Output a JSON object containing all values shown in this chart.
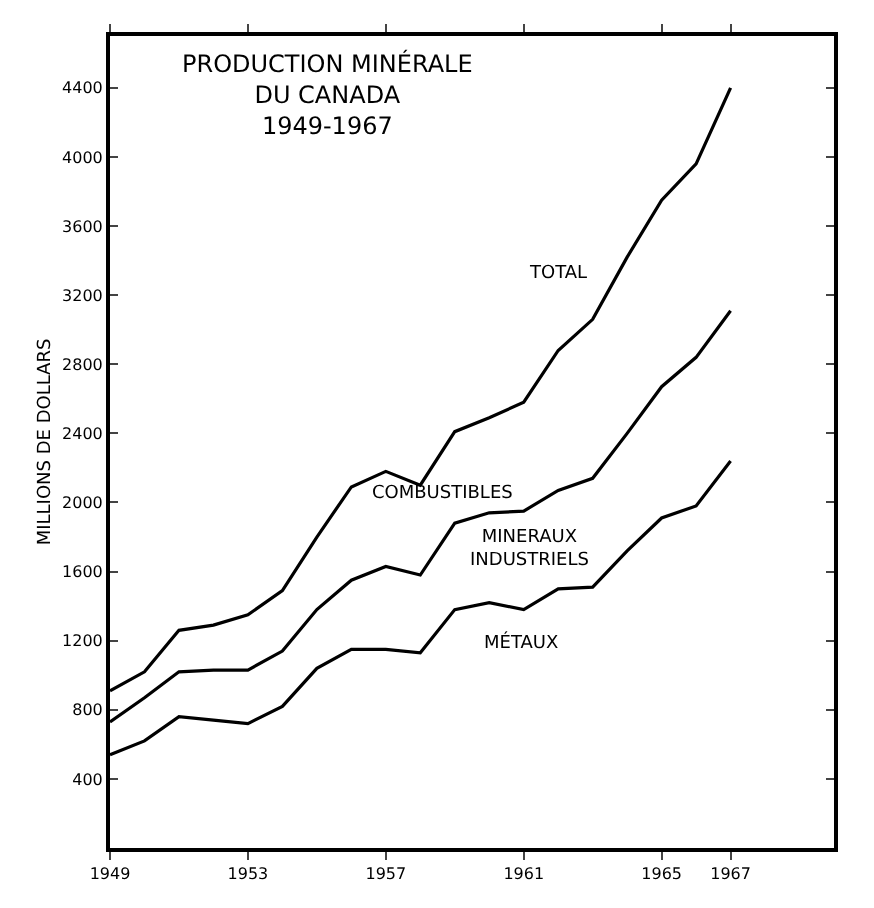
{
  "chart_data": {
    "type": "line",
    "title": "PRODUCTION MINÉRALE\nDU CANADA\n1949-1967",
    "ylabel": "MILLIONS DE DOLLARS",
    "x": [
      1949,
      1950,
      1951,
      1952,
      1953,
      1954,
      1955,
      1956,
      1957,
      1958,
      1959,
      1960,
      1961,
      1962,
      1963,
      1964,
      1965,
      1966,
      1967
    ],
    "series": [
      {
        "color": "#000000",
        "values": [
          910,
          1020,
          1260,
          1290,
          1350,
          1490,
          1800,
          2090,
          2180,
          2100,
          2410,
          2490,
          2580,
          2880,
          3060,
          3420,
          3750,
          3960,
          4400
        ]
      },
      {
        "color": "#000000",
        "values": [
          730,
          870,
          1020,
          1030,
          1030,
          1140,
          1380,
          1550,
          1630,
          1580,
          1880,
          1940,
          1950,
          2070,
          2140,
          2400,
          2670,
          2840,
          3110
        ]
      },
      {
        "color": "#000000",
        "values": [
          540,
          620,
          760,
          740,
          720,
          820,
          1040,
          1150,
          1150,
          1130,
          1380,
          1420,
          1380,
          1500,
          1510,
          1720,
          1910,
          1980,
          2240
        ]
      }
    ],
    "annotations": [
      "TOTAL",
      "COMBUSTIBLES",
      "MINERAUX\nINDUSTRIELS",
      "MÉTAUX"
    ],
    "xlim": [
      1949,
      1970
    ],
    "xticks": [
      1949,
      1953,
      1957,
      1961,
      1965,
      1967
    ],
    "ylim": [
      0,
      4700
    ],
    "yticks": [
      400,
      800,
      1200,
      1600,
      2000,
      2400,
      2800,
      3200,
      3600,
      4000,
      4400
    ],
    "marker": "none",
    "line_style": "solid"
  }
}
